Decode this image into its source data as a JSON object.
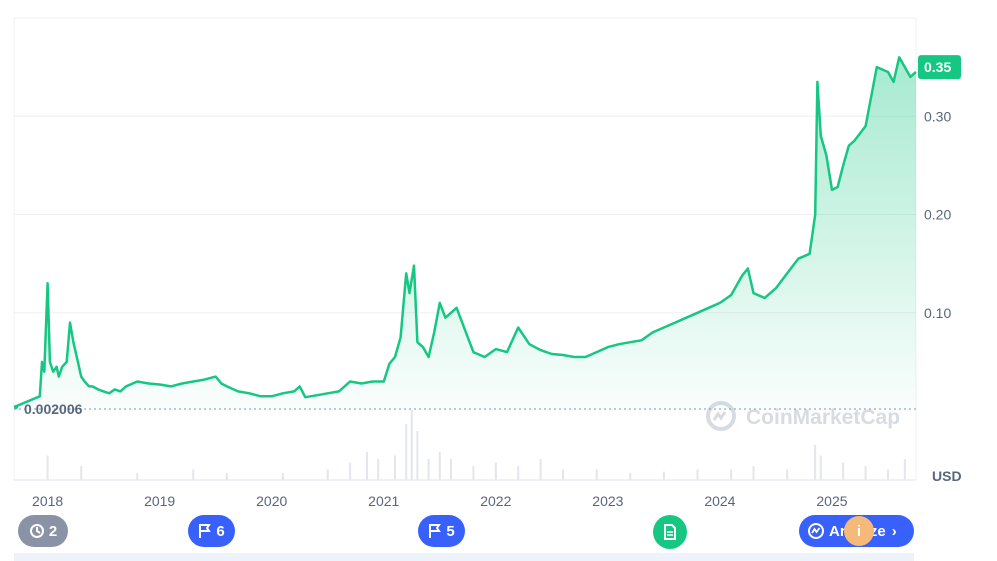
{
  "chart_data": {
    "type": "area",
    "currency_label": "USD",
    "current_price_label": "0.35",
    "baseline_label": "0.002006",
    "baseline_value": 0.002006,
    "watermark": "CoinMarketCap",
    "y_ticks": [
      {
        "label": "0.35",
        "value": 0.35
      },
      {
        "label": "0.30",
        "value": 0.3
      },
      {
        "label": "0.20",
        "value": 0.2
      },
      {
        "label": "0.10",
        "value": 0.1
      }
    ],
    "ylim": [
      0,
      0.4
    ],
    "x_ticks": [
      "2018",
      "2019",
      "2020",
      "2021",
      "2022",
      "2023",
      "2024",
      "2025"
    ],
    "x_tick_values": [
      2018.0,
      2019.0,
      2020.0,
      2021.0,
      2022.0,
      2023.0,
      2024.0,
      2025.0
    ],
    "xlim": [
      2017.7,
      2025.75
    ],
    "colors": {
      "line": "#16c784",
      "label_bg": "#16c784",
      "event_blue": "#3861fb",
      "grid": "#eef0f3"
    },
    "series": [
      {
        "x": [
          2017.7,
          2017.93,
          2017.95,
          2017.97,
          2018.0,
          2018.02,
          2018.05,
          2018.08,
          2018.1,
          2018.13,
          2018.17,
          2018.2,
          2018.23,
          2018.27,
          2018.3,
          2018.33,
          2018.37,
          2018.4,
          2018.45,
          2018.5,
          2018.55,
          2018.6,
          2018.65,
          2018.7,
          2018.8,
          2018.9,
          2019.0,
          2019.1,
          2019.2,
          2019.3,
          2019.4,
          2019.5,
          2019.55,
          2019.6,
          2019.7,
          2019.8,
          2019.9,
          2020.0,
          2020.1,
          2020.2,
          2020.25,
          2020.3,
          2020.4,
          2020.5,
          2020.6,
          2020.7,
          2020.8,
          2020.9,
          2021.0,
          2021.05,
          2021.1,
          2021.15,
          2021.2,
          2021.23,
          2021.27,
          2021.3,
          2021.35,
          2021.4,
          2021.45,
          2021.5,
          2021.55,
          2021.6,
          2021.65,
          2021.7,
          2021.75,
          2021.8,
          2021.9,
          2022.0,
          2022.1,
          2022.2,
          2022.3,
          2022.4,
          2022.5,
          2022.6,
          2022.7,
          2022.8,
          2022.9,
          2023.0,
          2023.1,
          2023.2,
          2023.3,
          2023.4,
          2023.5,
          2023.6,
          2023.7,
          2023.8,
          2023.9,
          2024.0,
          2024.1,
          2024.2,
          2024.25,
          2024.3,
          2024.4,
          2024.5,
          2024.6,
          2024.7,
          2024.8,
          2024.85,
          2024.87,
          2024.9,
          2024.95,
          2025.0,
          2025.05,
          2025.1,
          2025.15,
          2025.2,
          2025.3,
          2025.4,
          2025.5,
          2025.55,
          2025.6,
          2025.65,
          2025.7,
          2025.75
        ],
        "y": [
          0.004,
          0.015,
          0.05,
          0.04,
          0.13,
          0.05,
          0.04,
          0.045,
          0.035,
          0.045,
          0.05,
          0.09,
          0.07,
          0.05,
          0.035,
          0.03,
          0.025,
          0.025,
          0.022,
          0.02,
          0.018,
          0.022,
          0.02,
          0.025,
          0.03,
          0.028,
          0.027,
          0.025,
          0.028,
          0.03,
          0.032,
          0.035,
          0.028,
          0.025,
          0.02,
          0.018,
          0.015,
          0.015,
          0.018,
          0.02,
          0.025,
          0.014,
          0.016,
          0.018,
          0.02,
          0.03,
          0.028,
          0.03,
          0.03,
          0.048,
          0.055,
          0.075,
          0.14,
          0.12,
          0.148,
          0.07,
          0.065,
          0.055,
          0.08,
          0.11,
          0.095,
          0.1,
          0.105,
          0.09,
          0.075,
          0.06,
          0.055,
          0.063,
          0.06,
          0.085,
          0.068,
          0.062,
          0.058,
          0.057,
          0.055,
          0.055,
          0.06,
          0.065,
          0.068,
          0.07,
          0.072,
          0.08,
          0.085,
          0.09,
          0.095,
          0.1,
          0.105,
          0.11,
          0.118,
          0.138,
          0.145,
          0.12,
          0.115,
          0.125,
          0.14,
          0.155,
          0.16,
          0.2,
          0.335,
          0.28,
          0.26,
          0.225,
          0.228,
          0.25,
          0.27,
          0.275,
          0.29,
          0.35,
          0.345,
          0.335,
          0.36,
          0.35,
          0.34,
          0.345
        ]
      }
    ],
    "volume_series": [
      {
        "x": 2018.0,
        "v": 0.35
      },
      {
        "x": 2018.3,
        "v": 0.2
      },
      {
        "x": 2018.8,
        "v": 0.1
      },
      {
        "x": 2019.3,
        "v": 0.15
      },
      {
        "x": 2019.6,
        "v": 0.1
      },
      {
        "x": 2020.1,
        "v": 0.1
      },
      {
        "x": 2020.5,
        "v": 0.15
      },
      {
        "x": 2020.7,
        "v": 0.25
      },
      {
        "x": 2020.85,
        "v": 0.4
      },
      {
        "x": 2020.95,
        "v": 0.3
      },
      {
        "x": 2021.1,
        "v": 0.35
      },
      {
        "x": 2021.2,
        "v": 0.8
      },
      {
        "x": 2021.25,
        "v": 1.0
      },
      {
        "x": 2021.3,
        "v": 0.7
      },
      {
        "x": 2021.4,
        "v": 0.3
      },
      {
        "x": 2021.5,
        "v": 0.4
      },
      {
        "x": 2021.6,
        "v": 0.3
      },
      {
        "x": 2021.8,
        "v": 0.2
      },
      {
        "x": 2022.0,
        "v": 0.25
      },
      {
        "x": 2022.2,
        "v": 0.2
      },
      {
        "x": 2022.4,
        "v": 0.3
      },
      {
        "x": 2022.6,
        "v": 0.15
      },
      {
        "x": 2022.9,
        "v": 0.15
      },
      {
        "x": 2023.2,
        "v": 0.1
      },
      {
        "x": 2023.5,
        "v": 0.12
      },
      {
        "x": 2023.8,
        "v": 0.15
      },
      {
        "x": 2024.1,
        "v": 0.15
      },
      {
        "x": 2024.3,
        "v": 0.2
      },
      {
        "x": 2024.6,
        "v": 0.15
      },
      {
        "x": 2024.85,
        "v": 0.5
      },
      {
        "x": 2024.9,
        "v": 0.35
      },
      {
        "x": 2025.1,
        "v": 0.25
      },
      {
        "x": 2025.3,
        "v": 0.2
      },
      {
        "x": 2025.5,
        "v": 0.15
      },
      {
        "x": 2025.65,
        "v": 0.3
      }
    ],
    "events": [
      {
        "id": "history",
        "label": "2",
        "icon": "history-icon",
        "color": "#8a93a6"
      },
      {
        "id": "flag-2019",
        "label": "6",
        "icon": "flag-icon",
        "color": "#3861fb"
      },
      {
        "id": "flag-2021",
        "label": "5",
        "icon": "flag-icon",
        "color": "#3861fb"
      },
      {
        "id": "doc-2023",
        "label": "",
        "icon": "document-icon",
        "color": "#16c784"
      },
      {
        "id": "analyze",
        "label": "Analyze",
        "icon": "cmc-logo-icon",
        "color": "#3861fb"
      }
    ]
  }
}
